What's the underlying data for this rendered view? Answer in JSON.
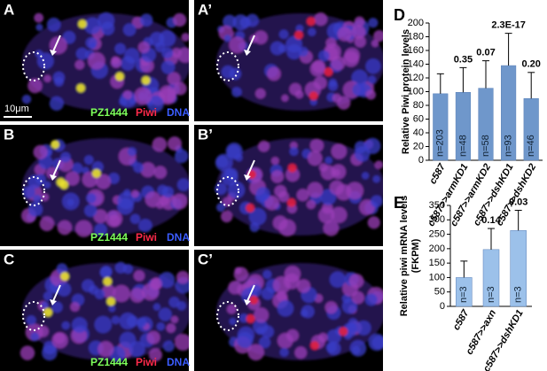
{
  "panels": [
    {
      "label": "A",
      "scale_bar": "10μm"
    },
    {
      "label": "A’"
    },
    {
      "label": "B"
    },
    {
      "label": "B’"
    },
    {
      "label": "C"
    },
    {
      "label": "C’"
    }
  ],
  "stains": [
    {
      "name": "PZ1444",
      "color": "#7dff5a"
    },
    {
      "name": "Piwi",
      "color": "#ff2a4a"
    },
    {
      "name": "DNA",
      "color": "#3b5cff"
    }
  ],
  "chart_data": [
    {
      "type": "bar",
      "panel_label": "D",
      "ylabel": "Relative Piwi protein levels",
      "categories": [
        "c587",
        "c587>>armKD1",
        "c587>>armKD2",
        "c587>>dshKD1",
        "c587>>dshKD2"
      ],
      "values": [
        97,
        99,
        105,
        138,
        90
      ],
      "errors": [
        29,
        36,
        40,
        47,
        38
      ],
      "annotations": [
        null,
        "0.35",
        "0.07",
        "2.3E-17",
        "0.20"
      ],
      "bar_labels": [
        "n=203",
        "n=48",
        "n=58",
        "n=93",
        "n=46"
      ],
      "color": "#6f97cb",
      "ylim": [
        0,
        200
      ],
      "yticks": [
        0,
        20,
        40,
        60,
        80,
        100,
        120,
        140,
        160,
        180,
        200
      ]
    },
    {
      "type": "bar",
      "panel_label": "E",
      "ylabel": [
        "Relative piwi mRNA levels",
        "(FKPM)"
      ],
      "categories": [
        "c587",
        "c587>>axn",
        "c587>>dshKD1"
      ],
      "values": [
        100,
        197,
        263
      ],
      "errors": [
        57,
        73,
        70
      ],
      "annotations": [
        null,
        "0.14",
        "0.03"
      ],
      "bar_labels": [
        "n=3",
        "n=3",
        "n=3"
      ],
      "color": "#9cc1ea",
      "ylim": [
        0,
        350
      ],
      "yticks": [
        0,
        50,
        100,
        150,
        200,
        250,
        300,
        350
      ]
    }
  ]
}
